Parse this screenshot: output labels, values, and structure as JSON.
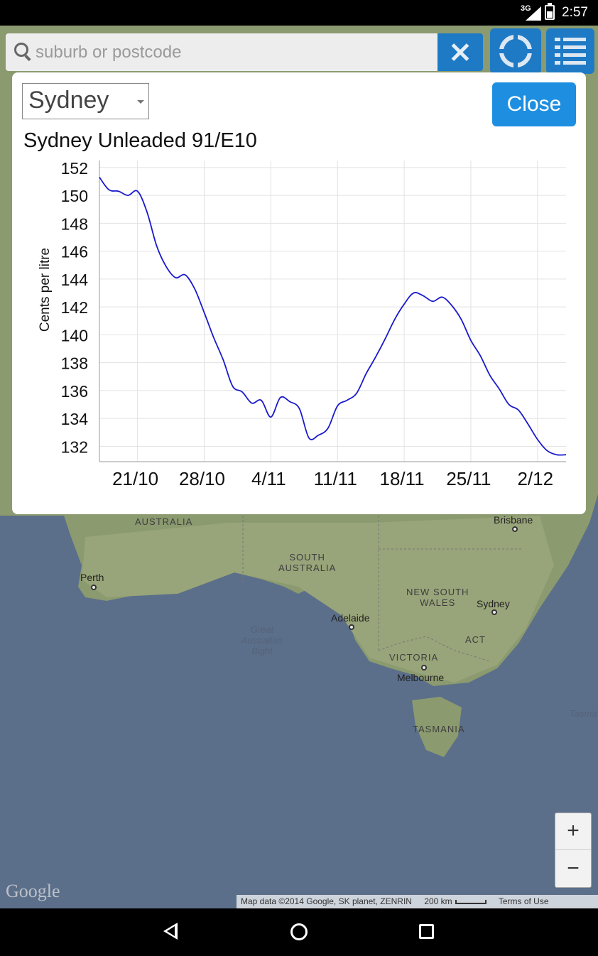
{
  "status_bar": {
    "network": "3G",
    "time": "2:57"
  },
  "search": {
    "placeholder": "suburb or postcode"
  },
  "modal": {
    "selected_city": "Sydney",
    "close_label": "Close",
    "chart_title": "Sydney Unleaded 91/E10"
  },
  "chart_data": {
    "type": "line",
    "title": "Sydney Unleaded 91/E10",
    "xlabel": "",
    "ylabel": "Cents per litre",
    "x_tick_labels": [
      "21/10",
      "28/10",
      "4/11",
      "11/11",
      "18/11",
      "25/11",
      "2/12"
    ],
    "x_ticks": [
      "2014-10-21",
      "2014-10-28",
      "2014-11-04",
      "2014-11-11",
      "2014-11-18",
      "2014-11-25",
      "2014-12-02"
    ],
    "xlim": [
      "2014-10-17",
      "2014-12-05"
    ],
    "ylim": [
      130.9,
      152.5
    ],
    "y_ticks": [
      132,
      134,
      136,
      138,
      140,
      142,
      144,
      146,
      148,
      150,
      152
    ],
    "grid": true,
    "color": "#1a1acc",
    "series": [
      {
        "x": [
          "2014-10-17",
          "2014-10-18",
          "2014-10-19",
          "2014-10-20",
          "2014-10-21",
          "2014-10-22",
          "2014-10-23",
          "2014-10-24",
          "2014-10-25",
          "2014-10-26",
          "2014-10-27",
          "2014-10-28",
          "2014-10-29",
          "2014-10-30",
          "2014-10-31",
          "2014-11-01",
          "2014-11-02",
          "2014-11-03",
          "2014-11-04",
          "2014-11-05",
          "2014-11-06",
          "2014-11-07",
          "2014-11-08",
          "2014-11-09",
          "2014-11-10",
          "2014-11-11",
          "2014-11-12",
          "2014-11-13",
          "2014-11-14",
          "2014-11-15",
          "2014-11-16",
          "2014-11-17",
          "2014-11-18",
          "2014-11-19",
          "2014-11-20",
          "2014-11-21",
          "2014-11-22",
          "2014-11-23",
          "2014-11-24",
          "2014-11-25",
          "2014-11-26",
          "2014-11-27",
          "2014-11-28",
          "2014-11-29",
          "2014-11-30",
          "2014-12-01",
          "2014-12-02",
          "2014-12-03",
          "2014-12-04",
          "2014-12-05"
        ],
        "values": [
          151.3,
          150.4,
          150.3,
          150.0,
          150.3,
          148.8,
          146.4,
          144.9,
          144.1,
          144.3,
          143.3,
          141.6,
          139.8,
          138.2,
          136.3,
          135.9,
          135.1,
          135.3,
          134.1,
          135.5,
          135.2,
          134.7,
          132.6,
          132.8,
          133.3,
          134.9,
          135.3,
          135.8,
          137.2,
          138.4,
          139.7,
          141.1,
          142.2,
          143.0,
          142.8,
          142.4,
          142.7,
          142.1,
          141.1,
          139.6,
          138.5,
          137.1,
          136.1,
          135.0,
          134.6,
          133.6,
          132.5,
          131.7,
          131.4,
          131.4
        ]
      }
    ]
  },
  "map": {
    "labels": {
      "western_australia": "AUSTRALIA",
      "south_australia": "SOUTH\nAUSTRALIA",
      "new_south_wales": "NEW SOUTH\nWALES",
      "victoria": "VICTORIA",
      "act": "ACT",
      "tasmania": "TASMANIA",
      "great_australian_bight": "Great\nAustralian\nBight",
      "tasman": "Tasma"
    },
    "cities": {
      "perth": "Perth",
      "adelaide": "Adelaide",
      "melbourne": "Melbourne",
      "sydney": "Sydney",
      "brisbane": "Brisbane"
    },
    "zoom_in": "+",
    "zoom_out": "−",
    "logo": "Google",
    "attribution": "Map data ©2014 Google, SK planet, ZENRIN",
    "scale": "200 km",
    "terms": "Terms of Use"
  }
}
